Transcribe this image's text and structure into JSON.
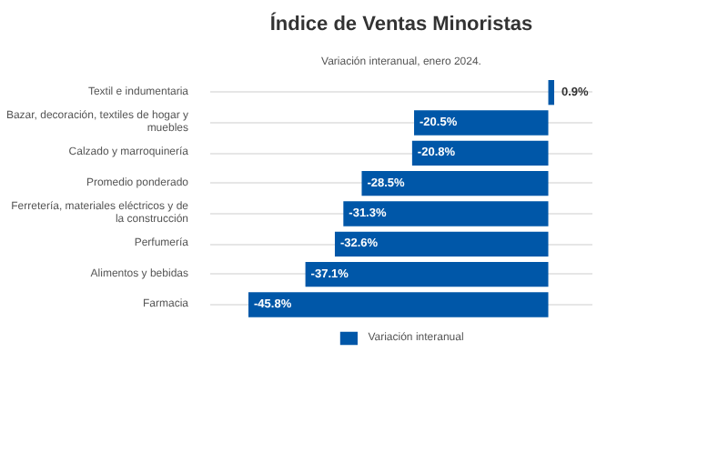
{
  "chart_data": {
    "type": "bar",
    "orientation": "horizontal",
    "title": "Índice de Ventas Minoristas",
    "subtitle": "Variación interanual, enero 2024.",
    "categories": [
      "Textil e indumentaria",
      "Bazar, decoración, textiles de hogar y muebles",
      "Calzado y marroquinería",
      "Promedio ponderado",
      "Ferretería, materiales eléctricos y de la construcción",
      "Perfumería",
      "Alimentos y bebidas",
      "Farmacia"
    ],
    "series": [
      {
        "name": "Variación interanual",
        "color": "#0057a8",
        "values": [
          0.9,
          -20.5,
          -20.8,
          -28.5,
          -31.3,
          -32.6,
          -37.1,
          -45.8
        ],
        "value_labels": [
          "0.9%",
          "-20.5%",
          "-20.8%",
          "-28.5%",
          "-31.3%",
          "-32.6%",
          "-37.1%",
          "-45.8%"
        ]
      }
    ],
    "tick_labels": "y",
    "grid": "y",
    "legend": "bottom"
  }
}
